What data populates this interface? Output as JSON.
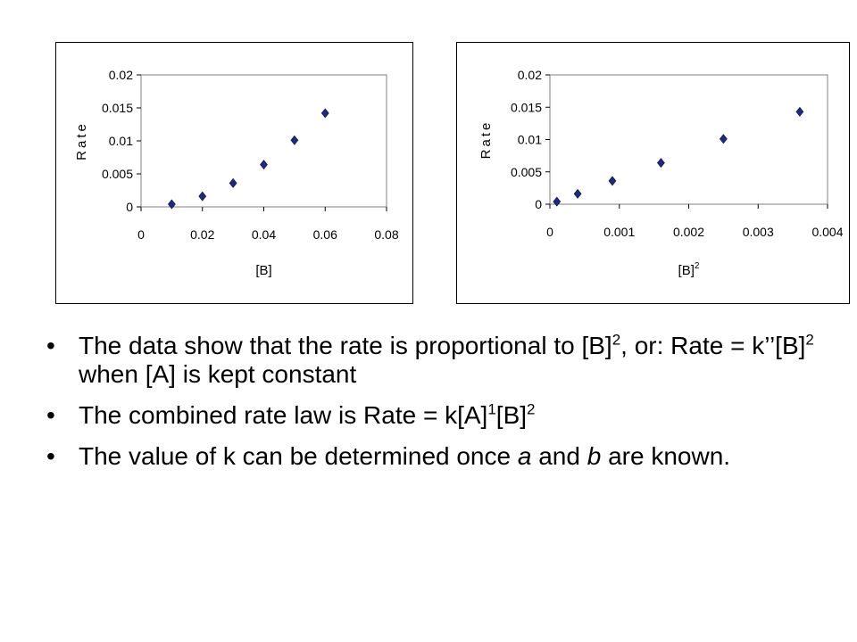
{
  "chart_data": [
    {
      "type": "scatter",
      "xlabel": "[B]",
      "ylabel": "Rate",
      "xlim": [
        0,
        0.08
      ],
      "ylim": [
        0,
        0.02
      ],
      "xticks": [
        "0",
        "0.02",
        "0.04",
        "0.06",
        "0.08"
      ],
      "yticks": [
        "0",
        "0.005",
        "0.01",
        "0.015",
        "0.02"
      ],
      "series": [
        {
          "x": [
            0.01,
            0.02,
            0.03,
            0.04,
            0.05,
            0.06
          ],
          "y": [
            0.0004,
            0.0016,
            0.0036,
            0.0064,
            0.0101,
            0.0142
          ]
        }
      ],
      "marker_color": "#1f2a7a",
      "grid": false,
      "legend": false
    },
    {
      "type": "scatter",
      "xlabel": "[B]",
      "xlabel_sup": "2",
      "ylabel": "Rate",
      "xlim": [
        0,
        0.004
      ],
      "ylim": [
        0,
        0.02
      ],
      "xticks": [
        "0",
        "0.001",
        "0.002",
        "0.003",
        "0.004"
      ],
      "yticks": [
        "0",
        "0.005",
        "0.01",
        "0.015",
        "0.02"
      ],
      "series": [
        {
          "x": [
            0.0001,
            0.0004,
            0.0009,
            0.0016,
            0.0025,
            0.0036
          ],
          "y": [
            0.0004,
            0.0016,
            0.0036,
            0.0064,
            0.0101,
            0.0143
          ]
        }
      ],
      "marker_color": "#1f2a7a",
      "grid": false,
      "legend": false
    }
  ],
  "bullets": [
    {
      "parts": [
        {
          "t": "The data show that the rate is proportional to [B]"
        },
        {
          "t": "2",
          "sup": true
        },
        {
          "t": ", or:  Rate = k’’[B]"
        },
        {
          "t": "2",
          "sup": true
        },
        {
          "t": " when [A] is kept constant"
        }
      ]
    },
    {
      "parts": [
        {
          "t": "The combined rate law is Rate = k[A]"
        },
        {
          "t": "1",
          "sup": true
        },
        {
          "t": "[B]"
        },
        {
          "t": "2",
          "sup": true
        }
      ]
    },
    {
      "parts": [
        {
          "t": "The value of k can be determined once "
        },
        {
          "t": "a",
          "i": true
        },
        {
          "t": " and "
        },
        {
          "t": "b",
          "i": true
        },
        {
          "t": " are known."
        }
      ]
    }
  ],
  "bullet_symbol": "•"
}
